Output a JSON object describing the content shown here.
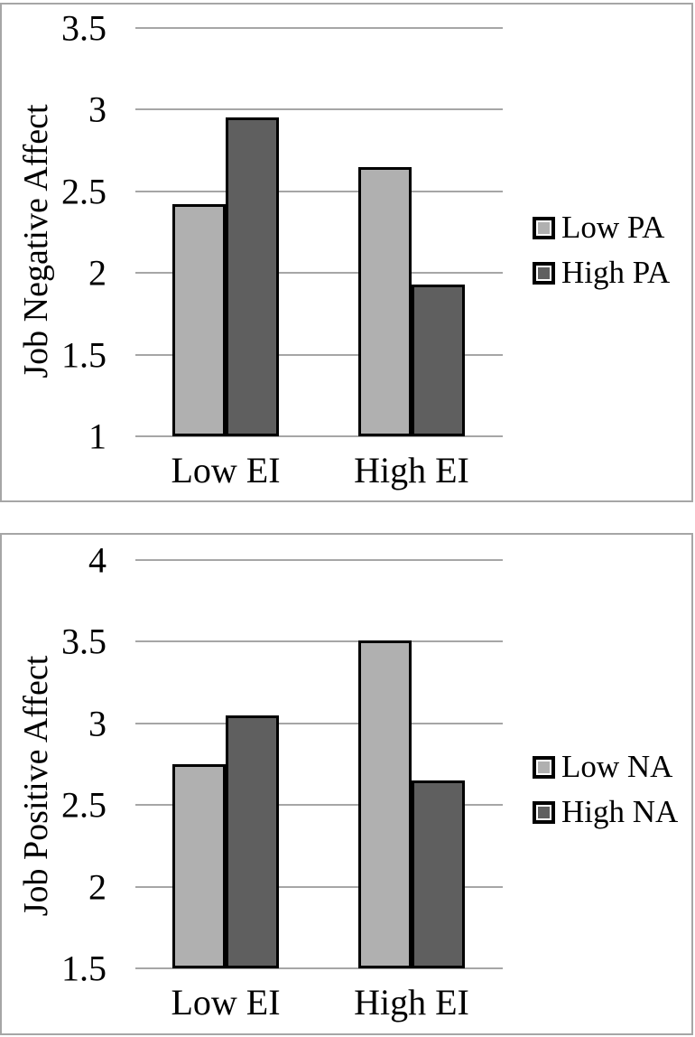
{
  "colors": {
    "bar_light": "#b0b0b0",
    "bar_dark": "#5f5f5f",
    "bar_border": "#000000",
    "gridline": "#a6a6a6",
    "panel_border": "#a6a6a6",
    "text": "#000000",
    "background": "#ffffff"
  },
  "chart_data": [
    {
      "type": "bar",
      "title": "",
      "ylabel": "Job Negative Affect",
      "xlabel": "",
      "categories": [
        "Low EI",
        "High EI"
      ],
      "series": [
        {
          "name": "Low PA",
          "color": "#b0b0b0",
          "values": [
            2.42,
            2.65
          ]
        },
        {
          "name": "High PA",
          "color": "#5f5f5f",
          "values": [
            2.95,
            1.93
          ]
        }
      ],
      "ylim": [
        1,
        3.5
      ],
      "yticks": [
        "1",
        "1.5",
        "2",
        "2.5",
        "3",
        "3.5"
      ],
      "grid": true,
      "legend_position": "right"
    },
    {
      "type": "bar",
      "title": "",
      "ylabel": "Job Positive Affect",
      "xlabel": "",
      "categories": [
        "Low EI",
        "High EI"
      ],
      "series": [
        {
          "name": "Low NA",
          "color": "#b0b0b0",
          "values": [
            2.75,
            3.51
          ]
        },
        {
          "name": "High NA",
          "color": "#5f5f5f",
          "values": [
            3.05,
            2.65
          ]
        }
      ],
      "ylim": [
        1.5,
        4
      ],
      "yticks": [
        "1.5",
        "2",
        "2.5",
        "3",
        "3.5",
        "4"
      ],
      "grid": true,
      "legend_position": "right"
    }
  ]
}
